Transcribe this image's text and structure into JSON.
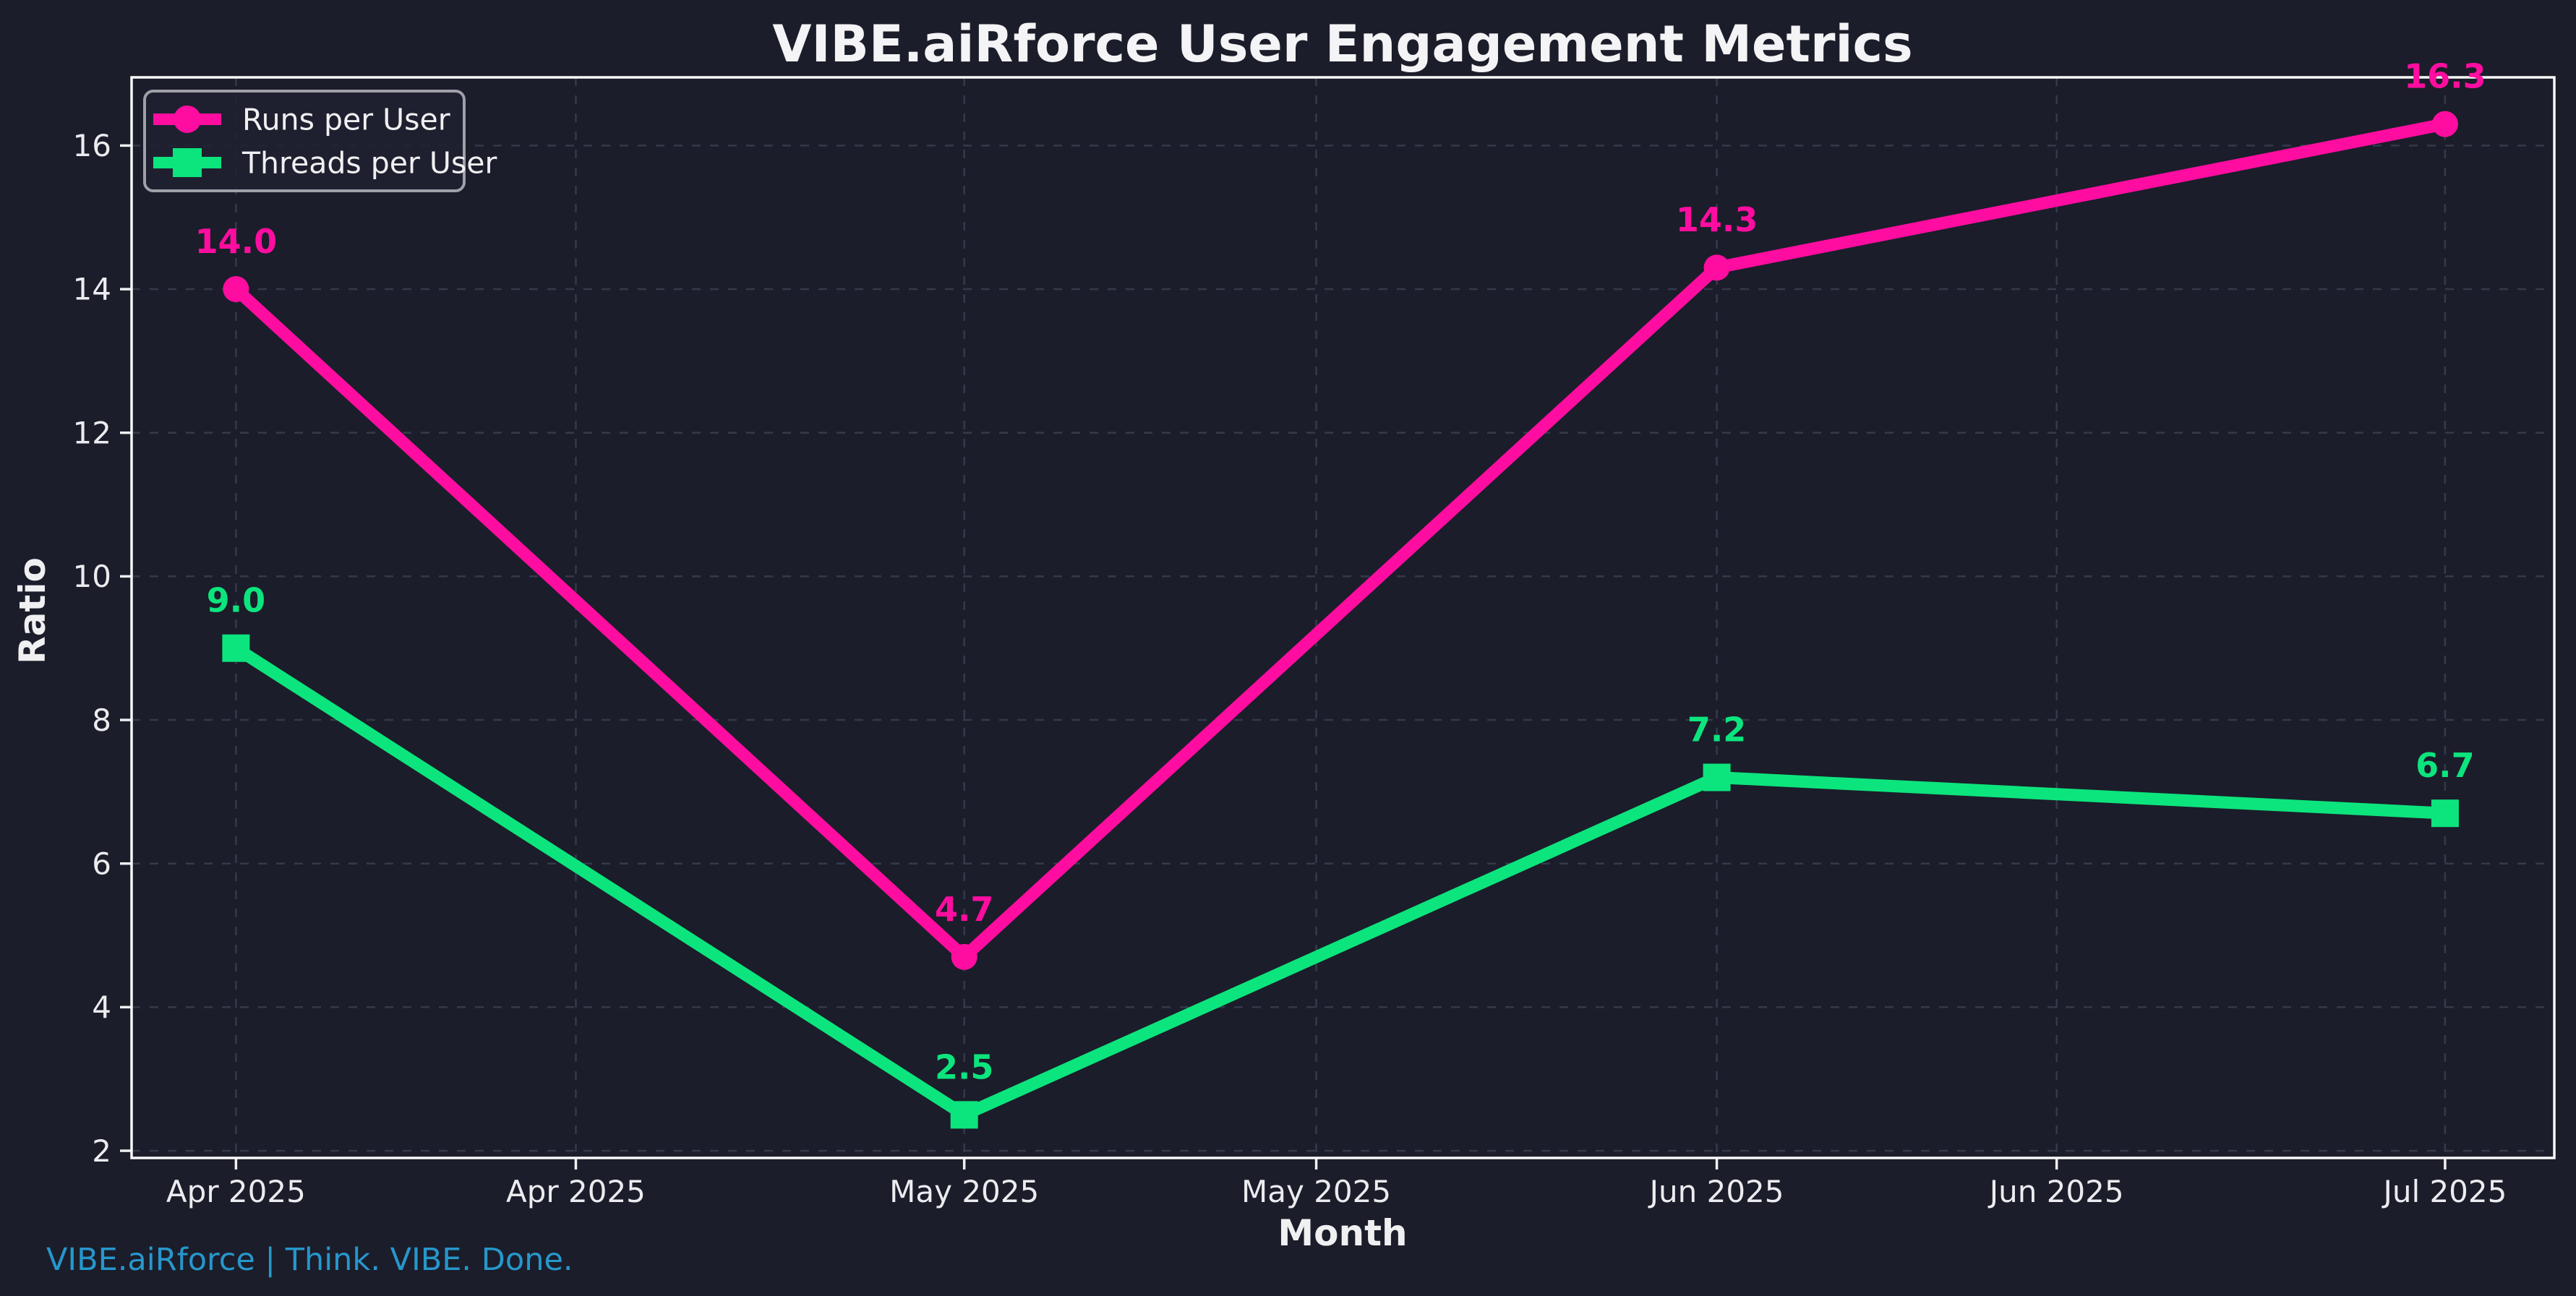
{
  "chart_data": {
    "type": "line",
    "title": "VIBE.aiRforce User Engagement Metrics",
    "xlabel": "Month",
    "ylabel": "Ratio",
    "x_tick_labels": [
      "Apr 2025",
      "Apr 2025",
      "May 2025",
      "May 2025",
      "Jun 2025",
      "Jun 2025",
      "Jul 2025"
    ],
    "x_tick_positions_days": [
      0,
      14,
      30,
      44.5,
      61,
      75,
      91
    ],
    "x_data_days": [
      0,
      30,
      61,
      91
    ],
    "xlim_days": [
      -4.3,
      95.5
    ],
    "y_ticks": [
      2,
      4,
      6,
      8,
      10,
      12,
      14,
      16
    ],
    "ylim": [
      1.9,
      16.95
    ],
    "grid": true,
    "grid_style": "dashed",
    "legend_position": "upper-left",
    "series": [
      {
        "name": "Runs per User",
        "values": [
          14.0,
          4.7,
          14.3,
          16.3
        ],
        "point_labels": [
          "14.0",
          "4.7",
          "14.3",
          "16.3"
        ],
        "color": "#ff0da0",
        "marker": "circle"
      },
      {
        "name": "Threads per User",
        "values": [
          9.0,
          2.5,
          7.2,
          6.7
        ],
        "point_labels": [
          "9.0",
          "2.5",
          "7.2",
          "6.7"
        ],
        "color": "#0ce57d",
        "marker": "square"
      }
    ]
  },
  "footer": {
    "text": "VIBE.aiRforce | Think. VIBE. Done.",
    "color": "#2797cb"
  },
  "colors": {
    "background": "#1b1d2a",
    "plot_background": "#1b1d2a",
    "spine": "#f8f8f8",
    "grid": "#343a4b",
    "tick": "#f0f0f2",
    "legend_border": "#9fa0a8",
    "legend_background": "#1e2130"
  }
}
